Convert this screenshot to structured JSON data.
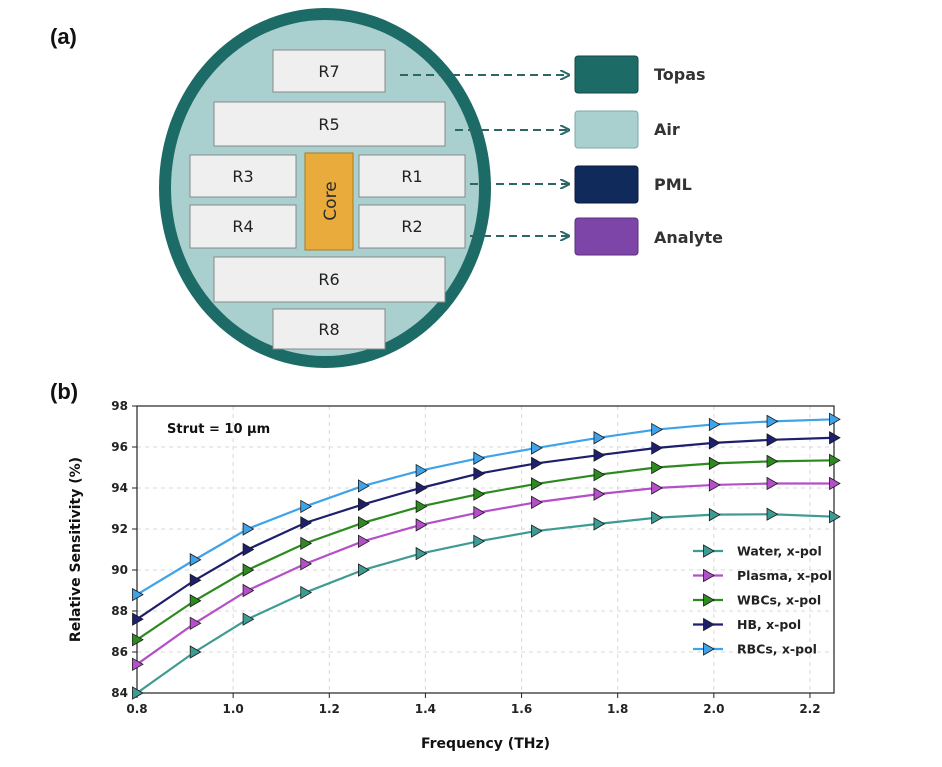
{
  "panel_a": {
    "label": "(a)",
    "core_label": "Core",
    "regions": [
      "R7",
      "R5",
      "R3",
      "R1",
      "R4",
      "R2",
      "R6",
      "R8"
    ],
    "legend": [
      {
        "label": "Topas",
        "color": "#1d6b66"
      },
      {
        "label": "Air",
        "color": "#a9cfcf"
      },
      {
        "label": "PML",
        "color": "#102a5c"
      },
      {
        "label": "Analyte",
        "color": "#7e45a8"
      }
    ],
    "colors": {
      "outer_ring": "#1d6b66",
      "cladding": "#a9cfcf",
      "rect_fill": "#efefef",
      "core": "#e9ac3c",
      "arrow": "#2c6767"
    }
  },
  "panel_b": {
    "label": "(b)",
    "annotation": "Strut = 10 µm"
  },
  "chart_data": {
    "type": "line",
    "xlabel": "Frequency (THz)",
    "ylabel": "Relative Sensitivity (%)",
    "xlim": [
      0.8,
      2.25
    ],
    "ylim": [
      84,
      98
    ],
    "xticks": [
      "0.8",
      "1.0",
      "1.2",
      "1.4",
      "1.6",
      "1.8",
      "2.0",
      "2.2"
    ],
    "yticks": [
      "84",
      "86",
      "88",
      "90",
      "92",
      "94",
      "96",
      "98"
    ],
    "grid": true,
    "legend_position": "bottom-right",
    "x": [
      0.8,
      0.92,
      1.03,
      1.15,
      1.27,
      1.39,
      1.51,
      1.63,
      1.76,
      1.88,
      2.0,
      2.12,
      2.25
    ],
    "series": [
      {
        "name": "Water, x-pol",
        "color": "#3d9b94",
        "values": [
          84.0,
          86.0,
          87.6,
          88.9,
          90.0,
          90.8,
          91.4,
          91.9,
          92.25,
          92.55,
          92.7,
          92.72,
          92.6
        ]
      },
      {
        "name": "Plasma, x-pol",
        "color": "#b54fc9",
        "values": [
          85.4,
          87.4,
          89.0,
          90.3,
          91.4,
          92.2,
          92.8,
          93.3,
          93.7,
          94.0,
          94.15,
          94.22,
          94.22
        ]
      },
      {
        "name": "WBCs, x-pol",
        "color": "#2d8a1f",
        "values": [
          86.6,
          88.5,
          90.0,
          91.3,
          92.3,
          93.1,
          93.7,
          94.2,
          94.65,
          95.0,
          95.2,
          95.3,
          95.35
        ]
      },
      {
        "name": "HB, x-pol",
        "color": "#1e1f6e",
        "values": [
          87.6,
          89.5,
          91.0,
          92.3,
          93.2,
          94.0,
          94.7,
          95.2,
          95.6,
          95.95,
          96.2,
          96.35,
          96.45
        ]
      },
      {
        "name": "RBCs, x-pol",
        "color": "#3ea3e8",
        "values": [
          88.8,
          90.5,
          92.0,
          93.1,
          94.1,
          94.85,
          95.45,
          95.95,
          96.45,
          96.85,
          97.1,
          97.25,
          97.35
        ]
      }
    ]
  }
}
